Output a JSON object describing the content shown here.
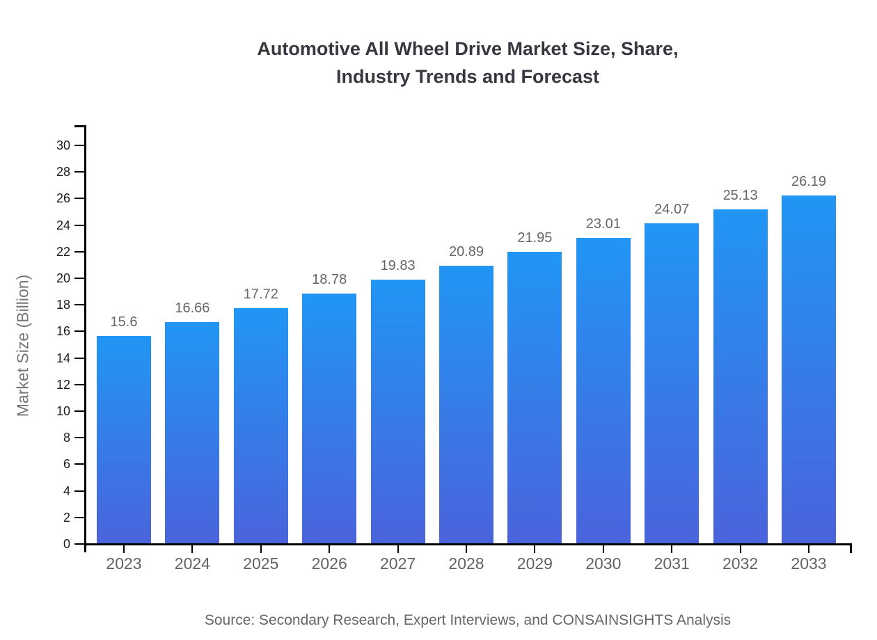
{
  "chart_data": {
    "type": "bar",
    "title": "Automotive All Wheel Drive Market Size, Share, Industry Trends and Forecast",
    "title_lines": [
      "Automotive All Wheel Drive Market Size, Share,",
      "Industry Trends and Forecast"
    ],
    "categories": [
      "2023",
      "2024",
      "2025",
      "2026",
      "2027",
      "2028",
      "2029",
      "2030",
      "2031",
      "2032",
      "2033"
    ],
    "values": [
      15.6,
      16.66,
      17.72,
      18.78,
      19.83,
      20.89,
      21.95,
      23.01,
      24.07,
      25.13,
      26.19
    ],
    "value_labels": [
      "15.6",
      "16.66",
      "17.72",
      "18.78",
      "19.83",
      "20.89",
      "21.95",
      "23.01",
      "24.07",
      "25.13",
      "26.19"
    ],
    "xlabel": "",
    "ylabel": "Market Size (Billion)",
    "ylim": [
      0,
      30
    ],
    "ytick_step": 2,
    "grid": false,
    "legend_position": "none",
    "source_note": "Source: Secondary Research, Expert Interviews, and CONSAINSIGHTS Analysis",
    "colors": {
      "bar_gradient_top": "#2196F4",
      "bar_gradient_bottom": "#4A63DB",
      "axis": "#000000",
      "y_tick_label": "#1a1a1a",
      "category_label": "#5f6368",
      "value_label": "#666666",
      "title": "#37373f",
      "source": "#666666",
      "ylabel": "#757575",
      "background": "#ffffff"
    }
  }
}
